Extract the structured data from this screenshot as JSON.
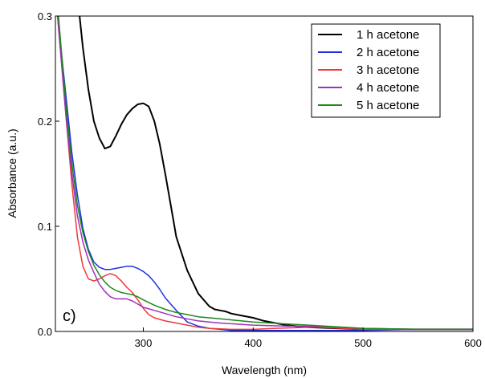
{
  "chart_data": {
    "type": "line",
    "xlabel": "Wavelength (nm)",
    "ylabel": "Absorbance (a.u.)",
    "xlim": [
      220,
      600
    ],
    "ylim": [
      0,
      0.3
    ],
    "x_ticks": [
      300,
      400,
      500,
      600
    ],
    "y_ticks": [
      0.0,
      0.1,
      0.2,
      0.3
    ],
    "x_tick_labels": [
      "300",
      "400",
      "500",
      "600"
    ],
    "y_tick_labels": [
      "0.0",
      "0.1",
      "0.2",
      "0.3"
    ],
    "panel_label": "c)",
    "legend_position": "top-right",
    "grid": false,
    "series": [
      {
        "name": "1 h acetone",
        "color": "#000000",
        "x": [
          240,
          245,
          250,
          255,
          260,
          265,
          270,
          275,
          280,
          285,
          290,
          295,
          300,
          305,
          310,
          315,
          320,
          325,
          330,
          340,
          350,
          360,
          365,
          370,
          375,
          380,
          390,
          400,
          410,
          420,
          430,
          450,
          500,
          550,
          600
        ],
        "y": [
          0.32,
          0.27,
          0.23,
          0.2,
          0.184,
          0.174,
          0.176,
          0.186,
          0.197,
          0.206,
          0.212,
          0.216,
          0.217,
          0.214,
          0.2,
          0.178,
          0.15,
          0.12,
          0.09,
          0.058,
          0.036,
          0.024,
          0.021,
          0.02,
          0.019,
          0.017,
          0.015,
          0.013,
          0.01,
          0.008,
          0.006,
          0.004,
          0.002,
          0.002,
          0.002
        ]
      },
      {
        "name": "2 h acetone",
        "color": "#2030e0",
        "x": [
          222,
          226,
          230,
          235,
          240,
          245,
          250,
          255,
          260,
          265,
          270,
          275,
          280,
          285,
          290,
          295,
          300,
          305,
          310,
          315,
          320,
          330,
          340,
          350,
          360,
          370,
          380,
          400,
          450,
          500,
          550,
          600
        ],
        "y": [
          0.3,
          0.26,
          0.22,
          0.17,
          0.13,
          0.098,
          0.078,
          0.066,
          0.061,
          0.059,
          0.059,
          0.06,
          0.061,
          0.062,
          0.062,
          0.06,
          0.057,
          0.053,
          0.047,
          0.04,
          0.032,
          0.02,
          0.009,
          0.005,
          0.003,
          0.002,
          0.001,
          0.001,
          0.001,
          0.001,
          0.002,
          0.002
        ]
      },
      {
        "name": "3 h acetone",
        "color": "#f03838",
        "x": [
          222,
          226,
          230,
          235,
          240,
          245,
          250,
          255,
          260,
          265,
          270,
          275,
          280,
          285,
          290,
          295,
          300,
          305,
          310,
          320,
          330,
          340,
          350,
          360,
          380,
          400,
          420,
          450,
          460,
          480,
          500,
          550,
          600
        ],
        "y": [
          0.3,
          0.25,
          0.2,
          0.14,
          0.09,
          0.062,
          0.05,
          0.048,
          0.05,
          0.053,
          0.055,
          0.053,
          0.048,
          0.042,
          0.037,
          0.03,
          0.022,
          0.016,
          0.013,
          0.01,
          0.008,
          0.006,
          0.004,
          0.003,
          0.002,
          0.002,
          0.003,
          0.004,
          0.004,
          0.003,
          0.002,
          0.002,
          0.002
        ]
      },
      {
        "name": "4 h acetone",
        "color": "#a030c0",
        "x": [
          222,
          226,
          230,
          235,
          240,
          245,
          250,
          255,
          260,
          265,
          270,
          275,
          280,
          285,
          290,
          295,
          300,
          310,
          320,
          330,
          340,
          350,
          370,
          400,
          430,
          450,
          460,
          480,
          500,
          550,
          600
        ],
        "y": [
          0.3,
          0.25,
          0.2,
          0.15,
          0.11,
          0.085,
          0.068,
          0.056,
          0.045,
          0.038,
          0.033,
          0.031,
          0.031,
          0.031,
          0.029,
          0.026,
          0.023,
          0.02,
          0.017,
          0.014,
          0.012,
          0.01,
          0.008,
          0.006,
          0.005,
          0.005,
          0.005,
          0.004,
          0.003,
          0.002,
          0.002
        ]
      },
      {
        "name": "5 h acetone",
        "color": "#1a8a1a",
        "x": [
          222,
          226,
          230,
          235,
          240,
          245,
          250,
          255,
          260,
          265,
          270,
          275,
          280,
          285,
          290,
          295,
          300,
          310,
          320,
          330,
          340,
          350,
          370,
          400,
          450,
          500,
          550,
          600
        ],
        "y": [
          0.31,
          0.26,
          0.21,
          0.16,
          0.12,
          0.094,
          0.076,
          0.063,
          0.054,
          0.047,
          0.042,
          0.039,
          0.037,
          0.036,
          0.035,
          0.033,
          0.03,
          0.025,
          0.021,
          0.018,
          0.016,
          0.014,
          0.012,
          0.009,
          0.006,
          0.003,
          0.002,
          0.002
        ]
      }
    ]
  }
}
